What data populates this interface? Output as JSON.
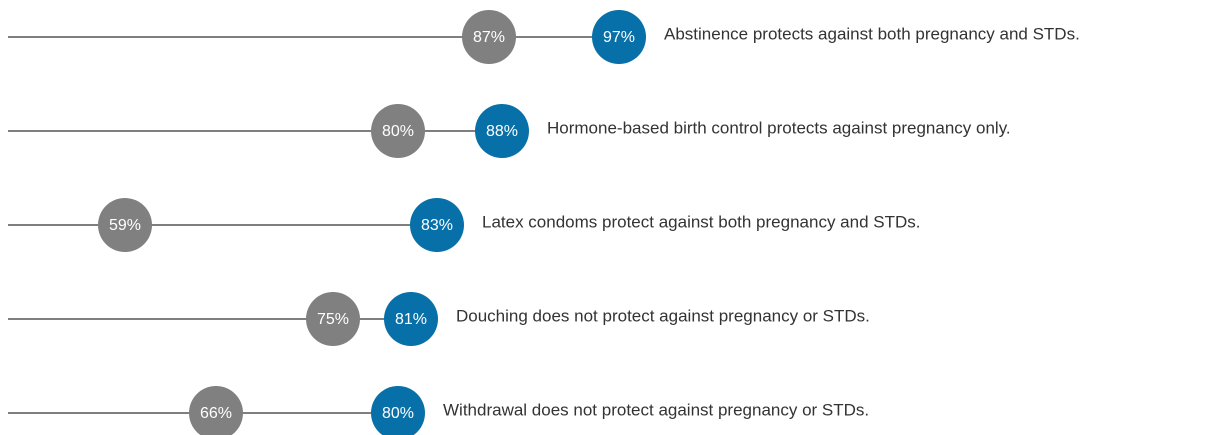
{
  "chart_data": {
    "type": "dot",
    "categories": [
      "Abstinence protects against both pregnancy and STDs.",
      "Hormone-based birth control protects against pregnancy only.",
      "Latex condoms protect against both pregnancy and STDs.",
      "Douching does not protect against pregnancy or STDs.",
      "Withdrawal does not protect against pregnancy or STDs."
    ],
    "series": [
      {
        "color": "#808080",
        "values": [
          87,
          80,
          59,
          75,
          66
        ],
        "value_labels": [
          "87%",
          "80%",
          "59%",
          "75%",
          "66%"
        ]
      },
      {
        "color": "#0770a8",
        "values": [
          97,
          88,
          83,
          81,
          80
        ],
        "value_labels": [
          "97%",
          "88%",
          "83%",
          "81%",
          "80%"
        ]
      }
    ],
    "xlim": [
      50,
      142
    ]
  }
}
